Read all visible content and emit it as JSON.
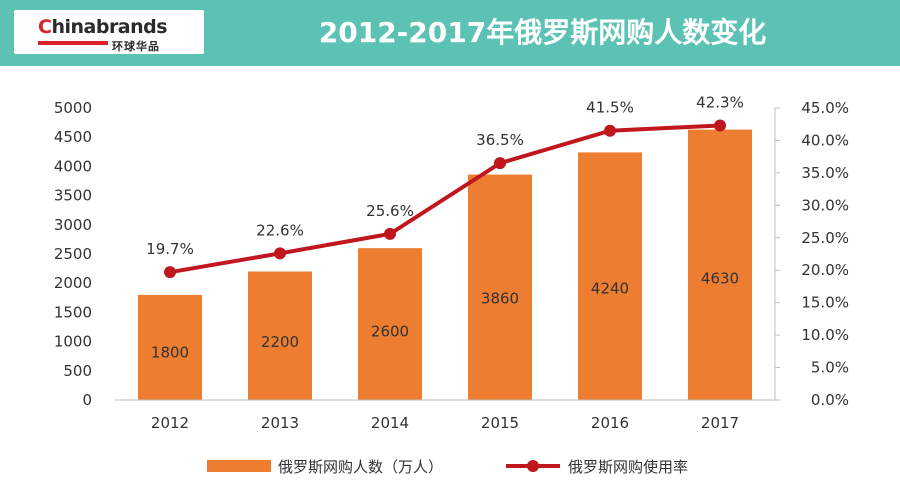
{
  "header": {
    "logo_prefix": "C",
    "logo_main": "hinabrands",
    "logo_sub": "环球华品",
    "title": "2012-2017年俄罗斯网购人数变化"
  },
  "colors": {
    "header_bg": "#5cc3b4",
    "bar": "#ed7d31",
    "line": "#c0161d"
  },
  "chart_data": {
    "type": "bar",
    "categories": [
      "2012",
      "2013",
      "2014",
      "2015",
      "2016",
      "2017"
    ],
    "series": [
      {
        "name": "俄罗斯网购人数（万人）",
        "type": "bar",
        "axis": "left",
        "values": [
          1800,
          2200,
          2600,
          3860,
          4240,
          4630
        ],
        "labels": [
          "1800",
          "2200",
          "2600",
          "3860",
          "4240",
          "4630"
        ]
      },
      {
        "name": "俄罗斯网购使用率",
        "type": "line",
        "axis": "right",
        "values": [
          19.7,
          22.6,
          25.6,
          36.5,
          41.5,
          42.3
        ],
        "labels": [
          "19.7%",
          "22.6%",
          "25.6%",
          "36.5%",
          "41.5%",
          "42.3%"
        ]
      }
    ],
    "y_left": {
      "ylim": [
        0,
        5000
      ],
      "ticks": [
        "0",
        "500",
        "1000",
        "1500",
        "2000",
        "2500",
        "3000",
        "3500",
        "4000",
        "4500",
        "5000"
      ]
    },
    "y_right": {
      "ylim": [
        0,
        45
      ],
      "ticks": [
        "0.0%",
        "5.0%",
        "10.0%",
        "15.0%",
        "20.0%",
        "25.0%",
        "30.0%",
        "35.0%",
        "40.0%",
        "45.0%"
      ]
    },
    "legend_position": "bottom",
    "grid": false
  }
}
